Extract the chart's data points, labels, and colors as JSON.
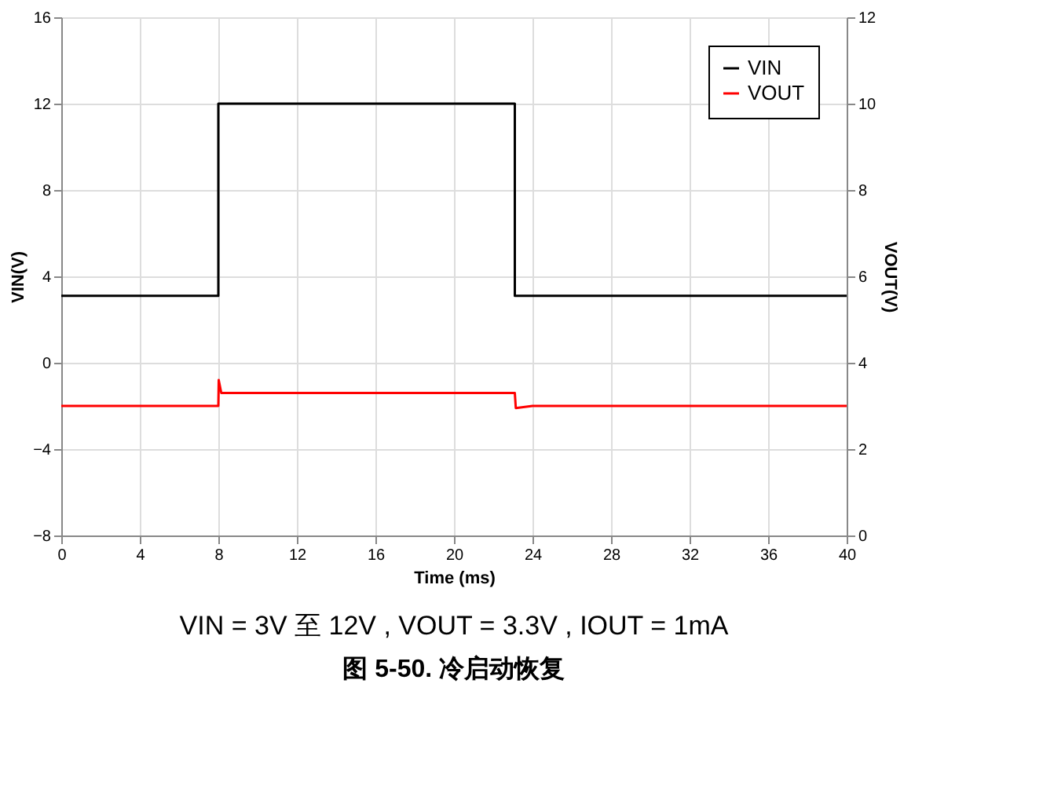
{
  "chart_data": {
    "type": "line",
    "title": "图 5-50. 冷启动恢复",
    "annotations": [
      "VIN = 3V 至 12V , VOUT = 3.3V , IOUT = 1mA"
    ],
    "xlabel": "Time (ms)",
    "ylabel": "VIN(V)",
    "y2label": "VOUT(V)",
    "series": [
      {
        "name": "VIN",
        "color": "#000000",
        "x": [
          0,
          8,
          8,
          23.1,
          23.1,
          40
        ],
        "values": [
          3.1,
          3.1,
          12,
          12,
          3.1,
          3.1
        ]
      },
      {
        "name": "VOUT",
        "color": "#ff0000",
        "axis": "y2",
        "x": [
          0,
          8,
          8.02,
          8.15,
          23.1,
          23.15,
          24,
          40
        ],
        "values": [
          3.0,
          3.0,
          3.6,
          3.3,
          3.3,
          2.95,
          3.0,
          3.0
        ]
      }
    ],
    "xlim": [
      0,
      40
    ],
    "xticks": [
      0,
      4,
      8,
      12,
      16,
      20,
      24,
      28,
      32,
      36,
      40
    ],
    "ylim": [
      -8,
      16
    ],
    "yticks": [
      -8,
      -4,
      0,
      4,
      8,
      12,
      16
    ],
    "y2lim": [
      0,
      12
    ],
    "y2ticks": [
      0,
      2,
      4,
      6,
      8,
      10,
      12
    ],
    "grid": true,
    "legend": "top right",
    "line_style": "solid",
    "marker": "none"
  }
}
